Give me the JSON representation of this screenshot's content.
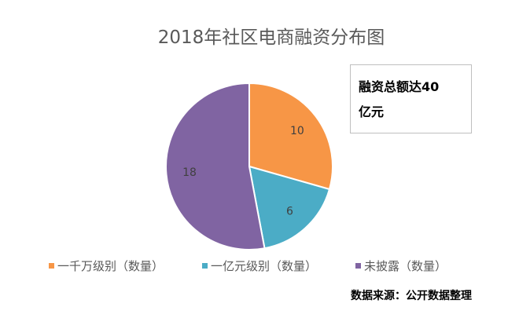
{
  "chart_data": {
    "type": "pie",
    "title": "2018年社区电商融资分布图",
    "categories": [
      "一千万级别（数量）",
      "一亿元级别（数量）",
      "未披露（数量）"
    ],
    "values": [
      10,
      6,
      18
    ],
    "colors": [
      "#f79646",
      "#4bacc6",
      "#8064a2"
    ],
    "legend_position": "bottom",
    "start_angle": "top, clockwise"
  },
  "annotation": {
    "line1": "融资总额达40",
    "line2": "亿元"
  },
  "source": "数据来源：公开数据整理"
}
